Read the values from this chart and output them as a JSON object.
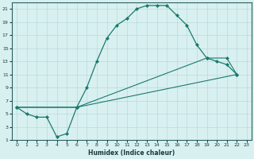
{
  "xlabel": "Humidex (Indice chaleur)",
  "line_color": "#1a7a6e",
  "background_color": "#d9f0f0",
  "grid_color": "#b8dada",
  "xlim": [
    -0.5,
    23.5
  ],
  "ylim": [
    1,
    22
  ],
  "xticks": [
    0,
    1,
    2,
    3,
    4,
    5,
    6,
    7,
    8,
    9,
    10,
    11,
    12,
    13,
    14,
    15,
    16,
    17,
    18,
    19,
    20,
    21,
    22,
    23
  ],
  "yticks": [
    1,
    3,
    5,
    7,
    9,
    11,
    13,
    15,
    17,
    19,
    21
  ],
  "line1_x": [
    0,
    1,
    2,
    3,
    4,
    5,
    6,
    7,
    8,
    9,
    10,
    11,
    12,
    13,
    14,
    15,
    16,
    17,
    18,
    19,
    20,
    21,
    22
  ],
  "line1_y": [
    6,
    5,
    4.5,
    4.5,
    1.5,
    2,
    6,
    9,
    13,
    16.5,
    18.5,
    19.5,
    21,
    21.5,
    21.5,
    21.5,
    20,
    18.5,
    15.5,
    13.5,
    13,
    12.5,
    11
  ],
  "line2_x": [
    0,
    6,
    19,
    21,
    22
  ],
  "line2_y": [
    6,
    6,
    13.5,
    13.5,
    11
  ],
  "line3_x": [
    0,
    6,
    22
  ],
  "line3_y": [
    6,
    6,
    11
  ]
}
